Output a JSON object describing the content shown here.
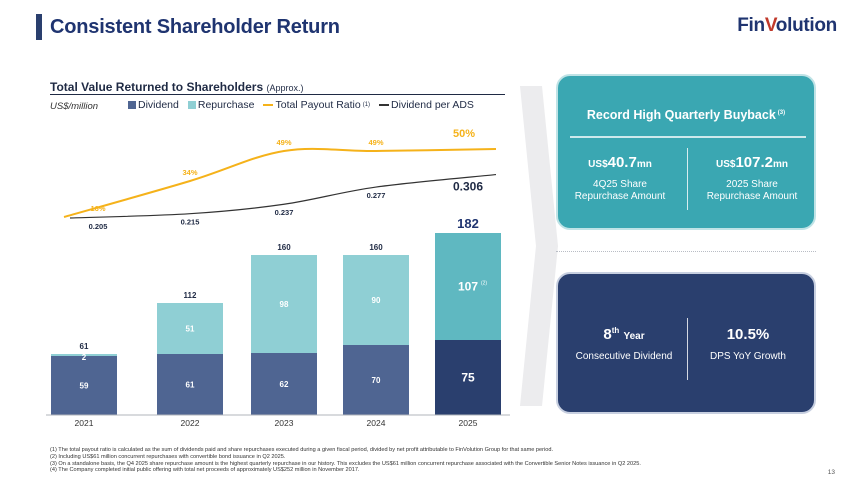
{
  "page": {
    "title": "Consistent Shareholder Return",
    "logo_main": "Fin",
    "logo_accent": "V",
    "logo_tail": "olution",
    "page_number": "13"
  },
  "chart_header": {
    "title": "Total Value Returned to Shareholders",
    "title_suffix": "(Approx.)",
    "unit": "US$/million",
    "legend": {
      "dividend": "Dividend",
      "repurchase": "Repurchase",
      "payout": "Total Payout Ratio",
      "payout_note": "(1)",
      "dps": "Dividend per ADS"
    }
  },
  "chart_data": {
    "type": "bar",
    "categories": [
      "2021",
      "2022",
      "2023",
      "2024",
      "2025"
    ],
    "series": [
      {
        "name": "Dividend",
        "type": "bar",
        "stack": "total",
        "values": [
          59,
          61,
          62,
          70,
          75
        ],
        "labels": [
          "59",
          "61",
          "62",
          "70",
          "75"
        ]
      },
      {
        "name": "Repurchase",
        "type": "bar",
        "stack": "total",
        "values": [
          2,
          51,
          98,
          90,
          107
        ],
        "labels": [
          "2",
          "51",
          "98",
          "90",
          "107"
        ]
      },
      {
        "name": "Total Payout Ratio",
        "type": "line",
        "unit": "%",
        "values": [
          16,
          34,
          49,
          49,
          50
        ],
        "labels": [
          "16%",
          "34%",
          "49%",
          "49%",
          "50%"
        ]
      },
      {
        "name": "Dividend per ADS",
        "type": "line",
        "values": [
          0.205,
          0.215,
          0.237,
          0.277,
          0.306
        ],
        "labels": [
          "0.205",
          "0.215",
          "0.237",
          "0.277",
          "0.306"
        ]
      }
    ],
    "totals": [
      61,
      112,
      160,
      160,
      182
    ],
    "total_labels": [
      "61",
      "112",
      "160",
      "160",
      "182"
    ],
    "annotations": [
      {
        "category": "2025",
        "series": "Repurchase",
        "note": "(2)"
      }
    ],
    "colors": {
      "dividend": "#4f6592",
      "dividend_last": "#2a3f6e",
      "repurchase": "#8fcfd4",
      "repurchase_last": "#5fb8c1",
      "payout": "#f5b21a",
      "dps": "#333333"
    },
    "xlabel": "",
    "ylabel": "US$/million"
  },
  "cards": {
    "buyback": {
      "heading": "Record High Quarterly Buyback",
      "note": "(3)",
      "left": {
        "prefix": "US$",
        "value": "40.7",
        "suffix": "mn",
        "label_line1": "4Q25 Share",
        "label_line2": "Repurchase Amount"
      },
      "right": {
        "prefix": "US$",
        "value": "107.2",
        "suffix": "mn",
        "label_line1": "2025 Share",
        "label_line2": "Repurchase Amount"
      }
    },
    "dividend": {
      "left": {
        "value": "8",
        "sup": "th",
        "suffix": "Year",
        "label": "Consecutive Dividend"
      },
      "right": {
        "value": "10.5%",
        "label": "DPS YoY Growth"
      }
    }
  },
  "footnotes": [
    "(1)  The total payout ratio is calculated as the sum of dividends paid and share repurchases executed during a given fiscal period, divided by net profit attributable to FinVolution Group for that same period.",
    "(2)  Including US$61 million concurrent repurchases with convertible bond issuance in Q2 2025.",
    "(3)  On a standalone basis, the Q4 2025 share repurchase amount is the highest quarterly repurchase in our history. This excludes the US$61 million concurrent repurchase associated with the Convertible Senior Notes issuance in Q2 2025.",
    "(4)  The Company completed initial public offering with total net proceeds of approximately US$252 million in November 2017."
  ]
}
